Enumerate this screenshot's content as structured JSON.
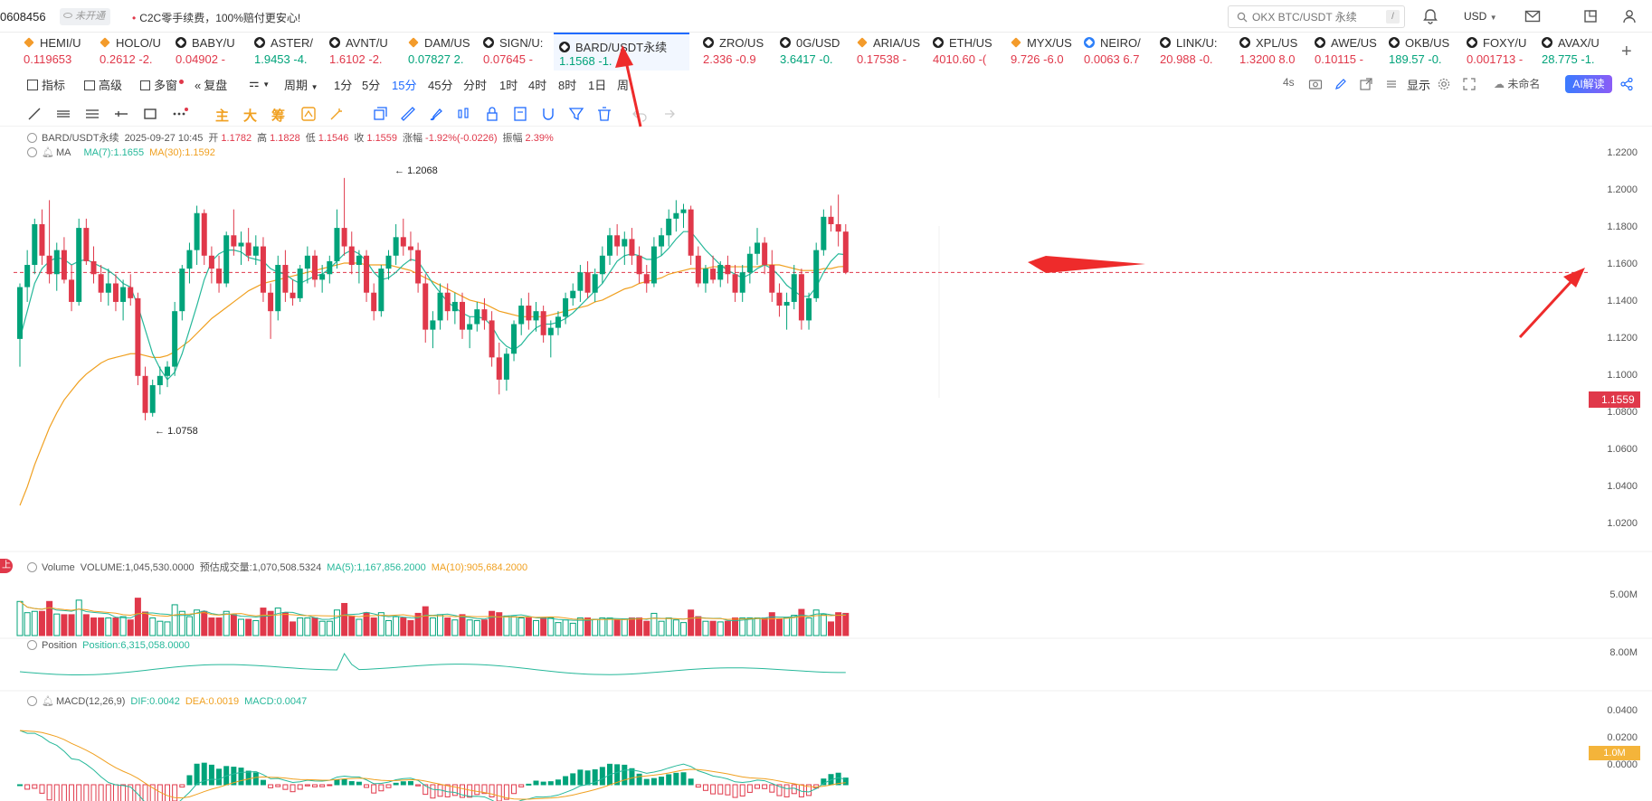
{
  "topbar": {
    "account_id": "0608456",
    "account_badge": "未开通",
    "promo_text": "C2C零手续费，100%赔付更安心!",
    "search_placeholder": "OKX BTC/USDT 永续",
    "search_shortcut": "/",
    "currency": "USD"
  },
  "tickers": [
    {
      "name": "HEMI/U",
      "price": "0.119653",
      "dir": "dn",
      "icon": "orange-diamond"
    },
    {
      "name": "HOLO/U",
      "price": "0.2612 -2.",
      "dir": "dn",
      "icon": "orange-diamond"
    },
    {
      "name": "BABY/U",
      "price": "0.04902 -",
      "dir": "dn",
      "icon": "okx-icon"
    },
    {
      "name": "ASTER/",
      "price": "1.9453 -4.",
      "dir": "up",
      "icon": "okx-icon"
    },
    {
      "name": "AVNT/U",
      "price": "1.6102 -2.",
      "dir": "dn",
      "icon": "okx-icon"
    },
    {
      "name": "DAM/US",
      "price": "0.07827 2.",
      "dir": "up",
      "icon": "orange-diamond"
    },
    {
      "name": "SIGN/U:",
      "price": "0.07645 -",
      "dir": "dn",
      "icon": "okx-icon"
    },
    {
      "name": "BARD/USDT永续",
      "price": "1.1568 -1.",
      "dir": "up",
      "icon": "okx-icon",
      "active": true
    },
    {
      "name": "ZRO/US",
      "price": "2.336 -0.9",
      "dir": "dn",
      "icon": "okx-icon"
    },
    {
      "name": "0G/USD",
      "price": "3.6417 -0.",
      "dir": "up",
      "icon": "okx-icon"
    },
    {
      "name": "ARIA/US",
      "price": "0.17538 -",
      "dir": "dn",
      "icon": "orange-diamond"
    },
    {
      "name": "ETH/US",
      "price": "4010.60 -(",
      "dir": "dn",
      "icon": "okx-icon"
    },
    {
      "name": "MYX/US",
      "price": "9.726 -6.0",
      "dir": "dn",
      "icon": "orange-diamond"
    },
    {
      "name": "NEIRO/",
      "price": "0.0063 6.7",
      "dir": "dn",
      "icon": "blue-icon"
    },
    {
      "name": "LINK/U:",
      "price": "20.988 -0.",
      "dir": "dn",
      "icon": "okx-icon"
    },
    {
      "name": "XPL/US",
      "price": "1.3200 8.0",
      "dir": "dn",
      "icon": "okx-icon"
    },
    {
      "name": "AWE/US",
      "price": "0.10115 -",
      "dir": "dn",
      "icon": "okx-icon"
    },
    {
      "name": "OKB/US",
      "price": "189.57 -0.",
      "dir": "up",
      "icon": "okx-icon"
    },
    {
      "name": "FOXY/U",
      "price": "0.001713 -",
      "dir": "dn",
      "icon": "okx-icon"
    },
    {
      "name": "AVAX/U",
      "price": "28.775 -1.",
      "dir": "up",
      "icon": "okx-icon"
    }
  ],
  "toolbar": {
    "indicators": "指标",
    "advanced": "高级",
    "multi_chart": "多窗",
    "replay": "复盘",
    "period": "周期",
    "intervals": [
      "1分",
      "5分",
      "15分",
      "45分",
      "分时",
      "1时",
      "4时",
      "8时",
      "1日",
      "周"
    ],
    "selected_interval": "15分",
    "countdown": "4s",
    "display": "显示",
    "layout_name": "未命名",
    "ai_button": "AI解读"
  },
  "draw_tools": {
    "main": "主",
    "big": "大",
    "chips": "筹"
  },
  "chart_legend": {
    "symbol": "BARD/USDT永续",
    "datetime": "2025-09-27 10:45",
    "open_label": "开",
    "open": "1.1782",
    "high_label": "高",
    "high": "1.1828",
    "low_label": "低",
    "low": "1.1546",
    "close_label": "收",
    "close": "1.1559",
    "change_label": "涨幅",
    "change": "-1.92%(-0.0226)",
    "amplitude_label": "振幅",
    "amplitude": "2.39%",
    "ma_label": "MA",
    "ma7": "MA(7):1.1655",
    "ma30": "MA(30):1.1592"
  },
  "volume_legend": {
    "label": "Volume",
    "volume": "VOLUME:1,045,530.0000",
    "forecast": "预估成交量:1,070,508.5324",
    "ma5": "MA(5):1,167,856.2000",
    "ma10": "MA(10):905,684.2000"
  },
  "position_legend": {
    "label": "Position",
    "value": "Position:6,315,058.0000"
  },
  "macd_legend": {
    "label": "MACD(12,26,9)",
    "dif": "DIF:0.0042",
    "dea": "DEA:0.0019",
    "macd": "MACD:0.0047"
  },
  "price_axis": [
    "1.2200",
    "1.2000",
    "1.1800",
    "1.1600",
    "1.1400",
    "1.1200",
    "1.1000",
    "1.0800",
    "1.0600",
    "1.0400",
    "1.0200"
  ],
  "volume_axis": [
    "5.00M",
    "1.0M"
  ],
  "position_axis": [
    "8.00M"
  ],
  "macd_axis": [
    "0.0400",
    "0.0200",
    "0.0000"
  ],
  "current_price": "1.1559",
  "high_marker": "1.2068",
  "low_marker": "1.0758",
  "side_badge": "上",
  "colors": {
    "up": "#00a37a",
    "down": "#e0384a",
    "ma7": "#26b89a",
    "ma30": "#f0a020",
    "accent": "#1f6bff",
    "arrow": "#ee2b2b"
  },
  "chart_data": {
    "type": "candlestick",
    "symbol": "BARD/USDT永续",
    "interval": "15分",
    "ylim": [
      1.01,
      1.225
    ],
    "current_price": 1.1559,
    "high_marker": 1.2068,
    "low_marker": 1.0758,
    "candles": [
      [
        1.12,
        1.15,
        1.105,
        1.148
      ],
      [
        1.148,
        1.168,
        1.14,
        1.16
      ],
      [
        1.16,
        1.185,
        1.155,
        1.182
      ],
      [
        1.182,
        1.19,
        1.16,
        1.165
      ],
      [
        1.165,
        1.195,
        1.15,
        1.155
      ],
      [
        1.155,
        1.172,
        1.146,
        1.168
      ],
      [
        1.168,
        1.175,
        1.15,
        1.152
      ],
      [
        1.152,
        1.16,
        1.135,
        1.14
      ],
      [
        1.14,
        1.185,
        1.138,
        1.18
      ],
      [
        1.18,
        1.185,
        1.16,
        1.162
      ],
      [
        1.162,
        1.17,
        1.15,
        1.155
      ],
      [
        1.155,
        1.16,
        1.14,
        1.145
      ],
      [
        1.145,
        1.158,
        1.138,
        1.15
      ],
      [
        1.15,
        1.155,
        1.135,
        1.14
      ],
      [
        1.14,
        1.152,
        1.13,
        1.148
      ],
      [
        1.148,
        1.155,
        1.138,
        1.142
      ],
      [
        1.142,
        1.145,
        1.095,
        1.1
      ],
      [
        1.1,
        1.105,
        1.076,
        1.08
      ],
      [
        1.08,
        1.098,
        1.078,
        1.095
      ],
      [
        1.095,
        1.105,
        1.09,
        1.1
      ],
      [
        1.1,
        1.108,
        1.094,
        1.105
      ],
      [
        1.105,
        1.14,
        1.1,
        1.135
      ],
      [
        1.135,
        1.16,
        1.13,
        1.158
      ],
      [
        1.158,
        1.172,
        1.15,
        1.168
      ],
      [
        1.168,
        1.192,
        1.16,
        1.188
      ],
      [
        1.188,
        1.19,
        1.16,
        1.165
      ],
      [
        1.165,
        1.17,
        1.15,
        1.158
      ],
      [
        1.158,
        1.165,
        1.145,
        1.15
      ],
      [
        1.15,
        1.178,
        1.148,
        1.176
      ],
      [
        1.176,
        1.19,
        1.165,
        1.17
      ],
      [
        1.17,
        1.178,
        1.16,
        1.172
      ],
      [
        1.172,
        1.18,
        1.162,
        1.165
      ],
      [
        1.165,
        1.176,
        1.16,
        1.17
      ],
      [
        1.17,
        1.175,
        1.14,
        1.145
      ],
      [
        1.145,
        1.15,
        1.12,
        1.135
      ],
      [
        1.135,
        1.165,
        1.13,
        1.16
      ],
      [
        1.16,
        1.168,
        1.14,
        1.145
      ],
      [
        1.145,
        1.152,
        1.138,
        1.142
      ],
      [
        1.142,
        1.16,
        1.14,
        1.158
      ],
      [
        1.158,
        1.17,
        1.15,
        1.165
      ],
      [
        1.165,
        1.168,
        1.148,
        1.152
      ],
      [
        1.152,
        1.16,
        1.145,
        1.155
      ],
      [
        1.155,
        1.165,
        1.15,
        1.162
      ],
      [
        1.162,
        1.19,
        1.158,
        1.18
      ],
      [
        1.18,
        1.207,
        1.165,
        1.17
      ],
      [
        1.17,
        1.178,
        1.155,
        1.16
      ],
      [
        1.16,
        1.168,
        1.15,
        1.165
      ],
      [
        1.165,
        1.168,
        1.14,
        1.145
      ],
      [
        1.145,
        1.15,
        1.13,
        1.135
      ],
      [
        1.135,
        1.16,
        1.132,
        1.158
      ],
      [
        1.158,
        1.168,
        1.152,
        1.165
      ],
      [
        1.165,
        1.182,
        1.16,
        1.175
      ],
      [
        1.175,
        1.185,
        1.165,
        1.17
      ],
      [
        1.17,
        1.178,
        1.162,
        1.168
      ],
      [
        1.168,
        1.172,
        1.145,
        1.15
      ],
      [
        1.15,
        1.155,
        1.118,
        1.125
      ],
      [
        1.125,
        1.135,
        1.115,
        1.13
      ],
      [
        1.13,
        1.15,
        1.125,
        1.145
      ],
      [
        1.145,
        1.15,
        1.13,
        1.135
      ],
      [
        1.135,
        1.145,
        1.128,
        1.14
      ],
      [
        1.14,
        1.145,
        1.12,
        1.125
      ],
      [
        1.125,
        1.132,
        1.115,
        1.128
      ],
      [
        1.128,
        1.14,
        1.124,
        1.136
      ],
      [
        1.136,
        1.142,
        1.125,
        1.13
      ],
      [
        1.13,
        1.135,
        1.105,
        1.11
      ],
      [
        1.11,
        1.118,
        1.09,
        1.098
      ],
      [
        1.098,
        1.115,
        1.092,
        1.112
      ],
      [
        1.112,
        1.13,
        1.108,
        1.128
      ],
      [
        1.128,
        1.142,
        1.122,
        1.138
      ],
      [
        1.138,
        1.145,
        1.125,
        1.13
      ],
      [
        1.13,
        1.14,
        1.124,
        1.135
      ],
      [
        1.135,
        1.138,
        1.118,
        1.122
      ],
      [
        1.122,
        1.13,
        1.11,
        1.126
      ],
      [
        1.126,
        1.135,
        1.122,
        1.132
      ],
      [
        1.132,
        1.145,
        1.128,
        1.142
      ],
      [
        1.142,
        1.15,
        1.138,
        1.146
      ],
      [
        1.146,
        1.16,
        1.14,
        1.156
      ],
      [
        1.156,
        1.162,
        1.142,
        1.145
      ],
      [
        1.145,
        1.158,
        1.14,
        1.155
      ],
      [
        1.155,
        1.17,
        1.15,
        1.165
      ],
      [
        1.165,
        1.18,
        1.16,
        1.176
      ],
      [
        1.176,
        1.182,
        1.165,
        1.17
      ],
      [
        1.17,
        1.178,
        1.16,
        1.174
      ],
      [
        1.174,
        1.18,
        1.16,
        1.165
      ],
      [
        1.165,
        1.17,
        1.15,
        1.155
      ],
      [
        1.155,
        1.16,
        1.145,
        1.15
      ],
      [
        1.15,
        1.175,
        1.148,
        1.17
      ],
      [
        1.17,
        1.18,
        1.165,
        1.176
      ],
      [
        1.176,
        1.19,
        1.17,
        1.185
      ],
      [
        1.185,
        1.195,
        1.178,
        1.188
      ],
      [
        1.188,
        1.193,
        1.18,
        1.19
      ],
      [
        1.19,
        1.192,
        1.16,
        1.165
      ],
      [
        1.165,
        1.17,
        1.148,
        1.15
      ],
      [
        1.15,
        1.16,
        1.145,
        1.158
      ],
      [
        1.158,
        1.165,
        1.15,
        1.152
      ],
      [
        1.152,
        1.162,
        1.148,
        1.16
      ],
      [
        1.16,
        1.165,
        1.15,
        1.155
      ],
      [
        1.155,
        1.16,
        1.14,
        1.145
      ],
      [
        1.145,
        1.16,
        1.14,
        1.156
      ],
      [
        1.156,
        1.17,
        1.15,
        1.166
      ],
      [
        1.166,
        1.18,
        1.16,
        1.172
      ],
      [
        1.172,
        1.175,
        1.155,
        1.16
      ],
      [
        1.16,
        1.168,
        1.14,
        1.145
      ],
      [
        1.145,
        1.15,
        1.132,
        1.138
      ],
      [
        1.138,
        1.145,
        1.125,
        1.14
      ],
      [
        1.14,
        1.16,
        1.136,
        1.155
      ],
      [
        1.155,
        1.158,
        1.125,
        1.13
      ],
      [
        1.13,
        1.145,
        1.125,
        1.142
      ],
      [
        1.142,
        1.172,
        1.14,
        1.168
      ],
      [
        1.168,
        1.19,
        1.165,
        1.186
      ],
      [
        1.186,
        1.192,
        1.178,
        1.182
      ],
      [
        1.182,
        1.198,
        1.17,
        1.178
      ],
      [
        1.178,
        1.182,
        1.155,
        1.1559
      ]
    ],
    "ma7": [
      1.12,
      1.135,
      1.15,
      1.158,
      1.162,
      1.164,
      1.163,
      1.16,
      1.162,
      1.163,
      1.161,
      1.159,
      1.157,
      1.154,
      1.15,
      1.148,
      1.138,
      1.125,
      1.112,
      1.104,
      1.098,
      1.102,
      1.112,
      1.125,
      1.138,
      1.152,
      1.162,
      1.166,
      1.168,
      1.168,
      1.167,
      1.164,
      1.163,
      1.162,
      1.158,
      1.156,
      1.155,
      1.152,
      1.15,
      1.152,
      1.154,
      1.155,
      1.158,
      1.162,
      1.166,
      1.168,
      1.166,
      1.162,
      1.156,
      1.152,
      1.153,
      1.156,
      1.16,
      1.163,
      1.162,
      1.156,
      1.15,
      1.145,
      1.14,
      1.137,
      1.134,
      1.132,
      1.132,
      1.131,
      1.127,
      1.12,
      1.116,
      1.114,
      1.117,
      1.122,
      1.126,
      1.128,
      1.128,
      1.129,
      1.131,
      1.134,
      1.138,
      1.142,
      1.146,
      1.15,
      1.156,
      1.162,
      1.165,
      1.166,
      1.165,
      1.163,
      1.163,
      1.165,
      1.169,
      1.174,
      1.178,
      1.178,
      1.173,
      1.168,
      1.164,
      1.16,
      1.157,
      1.155,
      1.153,
      1.155,
      1.158,
      1.16,
      1.158,
      1.154,
      1.149,
      1.146,
      1.143,
      1.143,
      1.148,
      1.156,
      1.162,
      1.166,
      1.1655
    ],
    "ma30": [
      1.03,
      1.04,
      1.052,
      1.062,
      1.072,
      1.08,
      1.087,
      1.092,
      1.097,
      1.101,
      1.104,
      1.107,
      1.109,
      1.11,
      1.111,
      1.112,
      1.112,
      1.111,
      1.11,
      1.11,
      1.111,
      1.113,
      1.116,
      1.119,
      1.123,
      1.127,
      1.131,
      1.134,
      1.137,
      1.14,
      1.143,
      1.146,
      1.148,
      1.15,
      1.151,
      1.152,
      1.153,
      1.154,
      1.155,
      1.156,
      1.157,
      1.158,
      1.159,
      1.16,
      1.161,
      1.161,
      1.161,
      1.16,
      1.16,
      1.16,
      1.16,
      1.159,
      1.158,
      1.157,
      1.155,
      1.153,
      1.151,
      1.149,
      1.147,
      1.145,
      1.143,
      1.141,
      1.14,
      1.139,
      1.137,
      1.135,
      1.134,
      1.133,
      1.132,
      1.132,
      1.132,
      1.132,
      1.133,
      1.134,
      1.135,
      1.136,
      1.137,
      1.138,
      1.14,
      1.141,
      1.143,
      1.145,
      1.147,
      1.148,
      1.15,
      1.151,
      1.152,
      1.153,
      1.155,
      1.156,
      1.157,
      1.158,
      1.158,
      1.158,
      1.159,
      1.159,
      1.159,
      1.159,
      1.159,
      1.159,
      1.159,
      1.16,
      1.16,
      1.16,
      1.159,
      1.158,
      1.157,
      1.157,
      1.157,
      1.158,
      1.158,
      1.159,
      1.1592
    ],
    "volume_ylim": [
      0,
      6000000
    ],
    "macd_ylim": [
      -0.006,
      0.04
    ]
  }
}
